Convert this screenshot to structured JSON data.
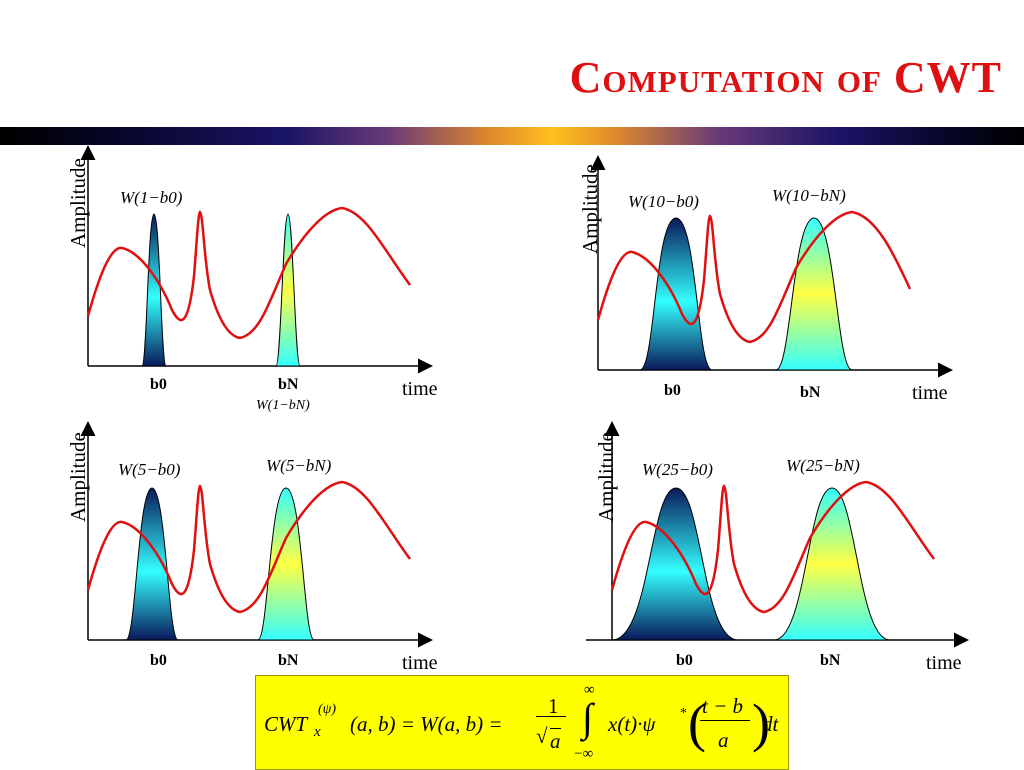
{
  "title": "Computation of CWT",
  "panels": [
    {
      "y_axis_label": "Amplitude",
      "x_axis_label": "time",
      "b0_label": "b0",
      "bN_label": "bN",
      "window_label_b0": "W(1−b0)",
      "window_label_bN": "W(1−bN)",
      "scale": 1
    },
    {
      "y_axis_label": "Amplitude",
      "x_axis_label": "time",
      "b0_label": "b0",
      "bN_label": "bN",
      "window_label_b0": "W(10−b0)",
      "window_label_bN": "W(10−bN)",
      "scale": 10
    },
    {
      "y_axis_label": "Amplitude",
      "x_axis_label": "time",
      "b0_label": "b0",
      "bN_label": "bN",
      "window_label_b0": "W(5−b0)",
      "window_label_bN": "W(5−bN)",
      "scale": 5
    },
    {
      "y_axis_label": "Amplitude",
      "x_axis_label": "time",
      "b0_label": "b0",
      "bN_label": "bN",
      "window_label_b0": "W(25−b0)",
      "window_label_bN": "W(25−bN)",
      "scale": 25
    }
  ],
  "formula": {
    "text": "CWT_x^(ψ)(a,b) = W(a,b) = 1/√a ∫_{−∞}^{∞} x(t)·ψ*((t−b)/a) dt",
    "lhs": "CWT",
    "sub": "x",
    "sup": "(ψ)",
    "args": "(a, b) = W(a, b) =",
    "frac_num": "1",
    "frac_den": "a",
    "int_upper": "∞",
    "int_lower": "−∞",
    "integrand": "x(t)·ψ",
    "arg_num": "t − b",
    "arg_den": "a",
    "tail": "dt"
  },
  "colors": {
    "title": "#dd1111",
    "signal": "#e01010",
    "window_dark": "#0a1a5a",
    "window_cyan": "#33ffff",
    "window_yellow": "#ffff44",
    "formula_bg": "#ffff00"
  }
}
